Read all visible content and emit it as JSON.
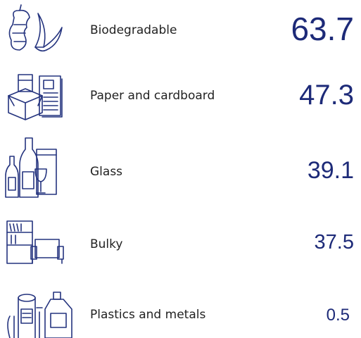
{
  "items": [
    {
      "label": "Biodegradable",
      "value": "63.7"
    },
    {
      "label": "Paper and cardboard",
      "value": "47.3"
    },
    {
      "label": "Glass",
      "value": "39.1"
    },
    {
      "label": "Bulky",
      "value": "37.5"
    },
    {
      "label": "Plastics and metals",
      "value": "0.5"
    }
  ]
}
